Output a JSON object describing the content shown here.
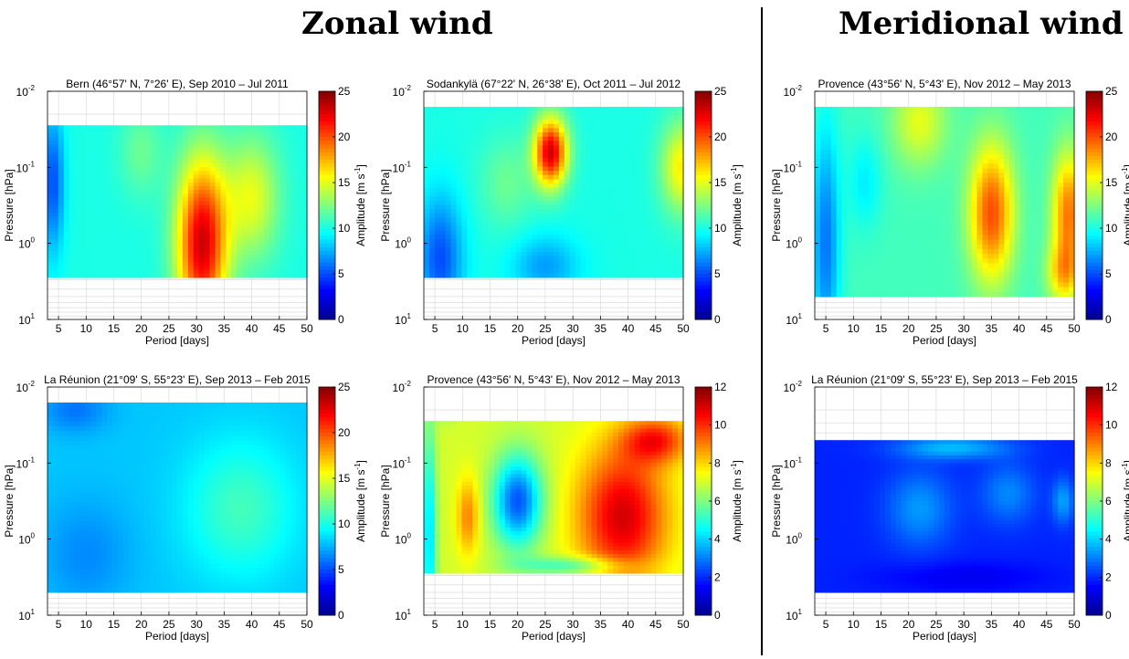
{
  "headers": {
    "zonal": "Zonal wind",
    "meridional": "Meridional wind"
  },
  "axes": {
    "xlabel": "Period [days]",
    "ylabel": "Pressure [hPa]",
    "cbar_label": "Amplitude [m s",
    "cbar_label_sup": "-1",
    "cbar_label_end": "]"
  },
  "colors": {
    "jet": [
      "#00008f",
      "#0000ff",
      "#00ffff",
      "#ffff00",
      "#ff0000",
      "#800000"
    ]
  },
  "chart_data": [
    {
      "id": "bern",
      "type": "heatmap",
      "title": "Bern (46°57' N, 7°26' E), Sep 2010 – Jul 2011",
      "xlabel": "Period [days]",
      "ylabel": "Pressure [hPa]",
      "xlim": [
        3,
        50
      ],
      "ylim": [
        10,
        0.01
      ],
      "yscale": "log",
      "xticks": [
        5,
        10,
        15,
        20,
        25,
        30,
        35,
        40,
        45,
        50
      ],
      "yticks": [
        {
          "base": "10",
          "exp": "-2",
          "v": 0.01
        },
        {
          "base": "10",
          "exp": "-1",
          "v": 0.1
        },
        {
          "base": "10",
          "exp": "0",
          "v": 1
        },
        {
          "base": "10",
          "exp": "1",
          "v": 10
        }
      ],
      "data_extent": {
        "pressure_top": 0.028,
        "pressure_bottom": 2.8
      },
      "colorbar": {
        "min": 0,
        "max": 25,
        "ticks": [
          0,
          5,
          10,
          15,
          20,
          25
        ]
      },
      "peak_amplitude": {
        "period": 30,
        "pressure": 1.5,
        "amplitude": 24
      }
    },
    {
      "id": "sodankyla",
      "type": "heatmap",
      "title": "Sodankylä (67°22' N, 26°38' E), Oct 2011 – Jul 2012",
      "xlabel": "Period [days]",
      "ylabel": "Pressure [hPa]",
      "xlim": [
        3,
        50
      ],
      "ylim": [
        10,
        0.01
      ],
      "yscale": "log",
      "xticks": [
        5,
        10,
        15,
        20,
        25,
        30,
        35,
        40,
        45,
        50
      ],
      "yticks": [
        {
          "base": "10",
          "exp": "-2",
          "v": 0.01
        },
        {
          "base": "10",
          "exp": "-1",
          "v": 0.1
        },
        {
          "base": "10",
          "exp": "0",
          "v": 1
        },
        {
          "base": "10",
          "exp": "1",
          "v": 10
        }
      ],
      "data_extent": {
        "pressure_top": 0.016,
        "pressure_bottom": 2.8
      },
      "colorbar": {
        "min": 0,
        "max": 25,
        "ticks": [
          0,
          5,
          10,
          15,
          20,
          25
        ]
      },
      "peak_amplitude": {
        "period": 26,
        "pressure": 0.05,
        "amplitude": 22
      }
    },
    {
      "id": "provence_zonal",
      "type": "heatmap",
      "title": "Provence (43°56' N, 5°43' E), Nov 2012 – May 2013",
      "xlabel": "Period [days]",
      "ylabel": "Pressure [hPa]",
      "xlim": [
        3,
        50
      ],
      "ylim": [
        10,
        0.01
      ],
      "yscale": "log",
      "xticks": [
        5,
        10,
        15,
        20,
        25,
        30,
        35,
        40,
        45,
        50
      ],
      "yticks": [
        {
          "base": "10",
          "exp": "-2",
          "v": 0.01
        },
        {
          "base": "10",
          "exp": "-1",
          "v": 0.1
        },
        {
          "base": "10",
          "exp": "0",
          "v": 1
        },
        {
          "base": "10",
          "exp": "1",
          "v": 10
        }
      ],
      "data_extent": {
        "pressure_top": 0.016,
        "pressure_bottom": 5
      },
      "colorbar": {
        "min": 0,
        "max": 25,
        "ticks": [
          0,
          5,
          10,
          15,
          20,
          25
        ]
      },
      "peak_amplitude": {
        "period": 35,
        "pressure": 0.5,
        "amplitude": 20
      }
    },
    {
      "id": "reunion_zonal",
      "type": "heatmap",
      "title": "La Réunion (21°09' S, 55°23' E), Sep 2013 – Feb 2015",
      "xlabel": "Period [days]",
      "ylabel": "Pressure [hPa]",
      "xlim": [
        3,
        50
      ],
      "ylim": [
        10,
        0.01
      ],
      "yscale": "log",
      "xticks": [
        5,
        10,
        15,
        20,
        25,
        30,
        35,
        40,
        45,
        50
      ],
      "yticks": [
        {
          "base": "10",
          "exp": "-2",
          "v": 0.01
        },
        {
          "base": "10",
          "exp": "-1",
          "v": 0.1
        },
        {
          "base": "10",
          "exp": "0",
          "v": 1
        },
        {
          "base": "10",
          "exp": "1",
          "v": 10
        }
      ],
      "data_extent": {
        "pressure_top": 0.016,
        "pressure_bottom": 5
      },
      "colorbar": {
        "min": 0,
        "max": 25,
        "ticks": [
          0,
          5,
          10,
          15,
          20,
          25
        ]
      },
      "peak_amplitude": {
        "period": 40,
        "pressure": 0.5,
        "amplitude": 12
      }
    },
    {
      "id": "provence_merid",
      "type": "heatmap",
      "title": "Provence (43°56' N, 5°43' E), Nov 2012 – May 2013",
      "xlabel": "Period [days]",
      "ylabel": "Pressure [hPa]",
      "xlim": [
        3,
        50
      ],
      "ylim": [
        10,
        0.01
      ],
      "yscale": "log",
      "xticks": [
        5,
        10,
        15,
        20,
        25,
        30,
        35,
        40,
        45,
        50
      ],
      "yticks": [
        {
          "base": "10",
          "exp": "-2",
          "v": 0.01
        },
        {
          "base": "10",
          "exp": "-1",
          "v": 0.1
        },
        {
          "base": "10",
          "exp": "0",
          "v": 1
        },
        {
          "base": "10",
          "exp": "1",
          "v": 10
        }
      ],
      "data_extent": {
        "pressure_top": 0.028,
        "pressure_bottom": 2.8
      },
      "colorbar": {
        "min": 0,
        "max": 12,
        "ticks": [
          0,
          2,
          4,
          6,
          8,
          10,
          12
        ]
      },
      "peak_amplitude": {
        "period": 38,
        "pressure": 0.05,
        "amplitude": 11
      }
    },
    {
      "id": "reunion_merid",
      "type": "heatmap",
      "title": "La Réunion (21°09' S, 55°23' E), Sep 2013 – Feb 2015",
      "xlabel": "Period [days]",
      "ylabel": "Pressure [hPa]",
      "xlim": [
        3,
        50
      ],
      "ylim": [
        10,
        0.01
      ],
      "yscale": "log",
      "xticks": [
        5,
        10,
        15,
        20,
        25,
        30,
        35,
        40,
        45,
        50
      ],
      "yticks": [
        {
          "base": "10",
          "exp": "-2",
          "v": 0.01
        },
        {
          "base": "10",
          "exp": "-1",
          "v": 0.1
        },
        {
          "base": "10",
          "exp": "0",
          "v": 1
        },
        {
          "base": "10",
          "exp": "1",
          "v": 10
        }
      ],
      "data_extent": {
        "pressure_top": 0.05,
        "pressure_bottom": 5
      },
      "colorbar": {
        "min": 0,
        "max": 12,
        "ticks": [
          0,
          2,
          4,
          6,
          8,
          10,
          12
        ]
      },
      "peak_amplitude": {
        "period": 22,
        "pressure": 0.4,
        "amplitude": 4
      }
    }
  ]
}
